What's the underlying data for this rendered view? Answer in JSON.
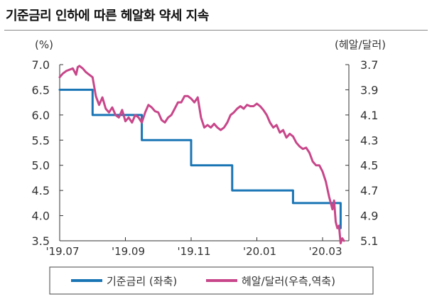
{
  "title": "기준금리 인하에 따른 헤알화 약세 지속",
  "chart_data": {
    "type": "line",
    "left_axis": {
      "unit": "(%)",
      "ticks": [
        "7.0",
        "6.5",
        "6.0",
        "5.5",
        "5.0",
        "4.5",
        "4.0",
        "3.5"
      ],
      "range": [
        3.5,
        7.0
      ]
    },
    "right_axis": {
      "unit": "(헤알/달러)",
      "ticks": [
        "3.7",
        "3.9",
        "4.1",
        "4.3",
        "4.5",
        "4.7",
        "4.9",
        "5.1"
      ],
      "range": [
        3.7,
        5.1
      ],
      "inverted": true
    },
    "x_ticks": [
      {
        "label": "'19.07",
        "month": 0
      },
      {
        "label": "'19.09",
        "month": 2
      },
      {
        "label": "'19.11",
        "month": 4
      },
      {
        "label": "'20.01",
        "month": 6
      },
      {
        "label": "'20.03",
        "month": 8
      }
    ],
    "x_domain_months": [
      0,
      8.8
    ],
    "series": [
      {
        "name": "기준금리 (좌축)",
        "axis": "left",
        "color": "#1a75b5",
        "step": true,
        "points": [
          [
            0.0,
            6.5
          ],
          [
            1.0,
            6.5
          ],
          [
            1.0,
            6.0
          ],
          [
            2.5,
            6.0
          ],
          [
            2.5,
            5.5
          ],
          [
            4.0,
            5.5
          ],
          [
            4.0,
            5.0
          ],
          [
            5.25,
            5.0
          ],
          [
            5.25,
            4.5
          ],
          [
            7.1,
            4.5
          ],
          [
            7.1,
            4.25
          ],
          [
            8.55,
            4.25
          ],
          [
            8.55,
            3.75
          ]
        ]
      },
      {
        "name": "헤알/달러(우측,역축)",
        "axis": "right",
        "color": "#c8468a",
        "step": false,
        "points": [
          [
            0.0,
            3.8
          ],
          [
            0.1,
            3.77
          ],
          [
            0.2,
            3.75
          ],
          [
            0.3,
            3.74
          ],
          [
            0.4,
            3.73
          ],
          [
            0.5,
            3.78
          ],
          [
            0.55,
            3.72
          ],
          [
            0.6,
            3.71
          ],
          [
            0.7,
            3.73
          ],
          [
            0.8,
            3.76
          ],
          [
            0.9,
            3.78
          ],
          [
            1.0,
            3.8
          ],
          [
            1.1,
            3.95
          ],
          [
            1.2,
            4.02
          ],
          [
            1.3,
            3.96
          ],
          [
            1.4,
            4.05
          ],
          [
            1.5,
            4.08
          ],
          [
            1.6,
            4.04
          ],
          [
            1.7,
            4.1
          ],
          [
            1.8,
            4.12
          ],
          [
            1.9,
            4.06
          ],
          [
            2.0,
            4.15
          ],
          [
            2.1,
            4.12
          ],
          [
            2.2,
            4.16
          ],
          [
            2.3,
            4.1
          ],
          [
            2.4,
            4.12
          ],
          [
            2.5,
            4.16
          ],
          [
            2.6,
            4.08
          ],
          [
            2.7,
            4.02
          ],
          [
            2.8,
            4.04
          ],
          [
            2.9,
            4.07
          ],
          [
            3.0,
            4.08
          ],
          [
            3.1,
            4.14
          ],
          [
            3.2,
            4.16
          ],
          [
            3.3,
            4.12
          ],
          [
            3.4,
            4.1
          ],
          [
            3.5,
            4.05
          ],
          [
            3.6,
            4.0
          ],
          [
            3.7,
            4.0
          ],
          [
            3.8,
            3.95
          ],
          [
            3.9,
            3.95
          ],
          [
            4.0,
            3.97
          ],
          [
            4.1,
            4.0
          ],
          [
            4.2,
            3.96
          ],
          [
            4.3,
            4.12
          ],
          [
            4.4,
            4.2
          ],
          [
            4.5,
            4.18
          ],
          [
            4.6,
            4.2
          ],
          [
            4.7,
            4.17
          ],
          [
            4.8,
            4.2
          ],
          [
            4.9,
            4.22
          ],
          [
            5.0,
            4.2
          ],
          [
            5.1,
            4.16
          ],
          [
            5.2,
            4.1
          ],
          [
            5.3,
            4.08
          ],
          [
            5.4,
            4.05
          ],
          [
            5.5,
            4.03
          ],
          [
            5.6,
            4.05
          ],
          [
            5.7,
            4.02
          ],
          [
            5.8,
            4.03
          ],
          [
            5.9,
            4.03
          ],
          [
            6.0,
            4.01
          ],
          [
            6.1,
            4.03
          ],
          [
            6.2,
            4.06
          ],
          [
            6.3,
            4.1
          ],
          [
            6.4,
            4.16
          ],
          [
            6.5,
            4.2
          ],
          [
            6.6,
            4.18
          ],
          [
            6.7,
            4.24
          ],
          [
            6.8,
            4.22
          ],
          [
            6.9,
            4.28
          ],
          [
            7.0,
            4.25
          ],
          [
            7.1,
            4.27
          ],
          [
            7.2,
            4.32
          ],
          [
            7.3,
            4.35
          ],
          [
            7.4,
            4.37
          ],
          [
            7.5,
            4.36
          ],
          [
            7.6,
            4.4
          ],
          [
            7.7,
            4.47
          ],
          [
            7.8,
            4.5
          ],
          [
            7.9,
            4.5
          ],
          [
            8.0,
            4.55
          ],
          [
            8.1,
            4.63
          ],
          [
            8.2,
            4.75
          ],
          [
            8.3,
            4.85
          ],
          [
            8.35,
            4.78
          ],
          [
            8.4,
            4.95
          ],
          [
            8.45,
            5.0
          ],
          [
            8.5,
            4.98
          ],
          [
            8.55,
            5.12
          ],
          [
            8.6,
            5.08
          ],
          [
            8.65,
            5.1
          ]
        ]
      }
    ],
    "legend": [
      {
        "label": "기준금리 (좌축)",
        "color": "#1a75b5"
      },
      {
        "label": "헤알/달러(우측,역축)",
        "color": "#c8468a"
      }
    ],
    "legend_position": "bottom"
  }
}
